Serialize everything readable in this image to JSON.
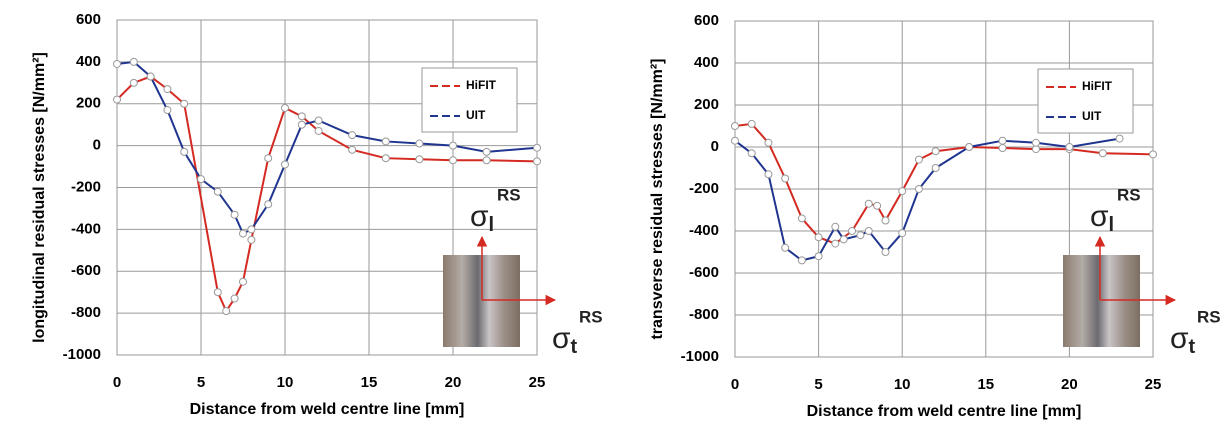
{
  "chart_data": [
    {
      "type": "line",
      "x_label": "Distance from weld centre line [mm]",
      "y_label": "longitudinal residual stresses [N/mm²]",
      "xlim": [
        0,
        25
      ],
      "xticks": [
        0,
        5,
        10,
        15,
        20,
        25
      ],
      "ylim": [
        -1000,
        600
      ],
      "yticks": [
        -1000,
        -800,
        -600,
        -400,
        -200,
        0,
        200,
        400,
        600
      ],
      "grid": true,
      "legend": "upper right",
      "series": [
        {
          "name": "HiFIT",
          "color": "#d42a22",
          "x": [
            0,
            1,
            2,
            3,
            4,
            6,
            6.5,
            7,
            7.5,
            8,
            9,
            10,
            11,
            12,
            14,
            16,
            18,
            20,
            22,
            25
          ],
          "values": [
            220,
            300,
            330,
            270,
            200,
            -700,
            -790,
            -730,
            -650,
            -450,
            -60,
            180,
            140,
            70,
            -20,
            -60,
            -65,
            -70,
            -70,
            -75
          ]
        },
        {
          "name": "UIT",
          "color": "#1f3590",
          "x": [
            0,
            1,
            2,
            3,
            4,
            5,
            6,
            7,
            7.5,
            8,
            9,
            10,
            11,
            12,
            14,
            16,
            18,
            20,
            22,
            25
          ],
          "values": [
            390,
            400,
            330,
            170,
            -30,
            -160,
            -220,
            -330,
            -420,
            -400,
            -280,
            -90,
            100,
            120,
            50,
            20,
            10,
            0,
            -30,
            -10
          ]
        }
      ],
      "annotations": [
        {
          "symbol": "σ",
          "sub": "l",
          "sup": "RS"
        },
        {
          "symbol": "σ",
          "sub": "t",
          "sup": "RS"
        }
      ]
    },
    {
      "type": "line",
      "x_label": "Distance from weld centre line [mm]",
      "y_label": "transverse residual stresses [N/mm²]",
      "xlim": [
        0,
        25
      ],
      "xticks": [
        0,
        5,
        10,
        15,
        20,
        25
      ],
      "ylim": [
        -1000,
        600
      ],
      "yticks": [
        -1000,
        -800,
        -600,
        -400,
        -200,
        0,
        200,
        400,
        600
      ],
      "grid": true,
      "legend": "upper right",
      "series": [
        {
          "name": "HiFIT",
          "color": "#d42a22",
          "x": [
            0,
            1,
            2,
            3,
            4,
            5,
            6,
            7,
            8,
            8.5,
            9,
            10,
            11,
            12,
            14,
            16,
            18,
            20,
            22,
            25
          ],
          "values": [
            100,
            110,
            20,
            -150,
            -340,
            -430,
            -460,
            -400,
            -270,
            -280,
            -350,
            -210,
            -60,
            -20,
            0,
            -5,
            -10,
            -10,
            -30,
            -35
          ]
        },
        {
          "name": "UIT",
          "color": "#1f3590",
          "x": [
            0,
            1,
            2,
            3,
            4,
            5,
            6,
            6.5,
            7.5,
            8,
            9,
            10,
            11,
            12,
            14,
            16,
            18,
            20,
            23
          ],
          "values": [
            30,
            -30,
            -130,
            -480,
            -540,
            -520,
            -380,
            -440,
            -420,
            -400,
            -500,
            -410,
            -200,
            -100,
            0,
            30,
            20,
            0,
            40
          ]
        }
      ],
      "annotations": [
        {
          "symbol": "σ",
          "sub": "l",
          "sup": "RS"
        },
        {
          "symbol": "σ",
          "sub": "t",
          "sup": "RS"
        }
      ]
    }
  ]
}
